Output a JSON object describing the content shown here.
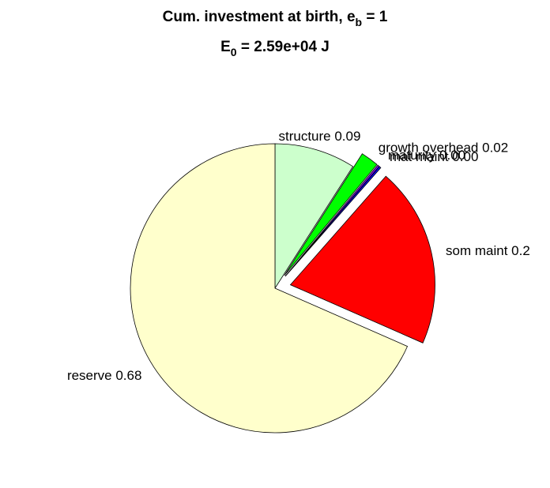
{
  "chart_data": {
    "type": "pie",
    "title": [
      "Cum. investment at birth, e",
      "b",
      " = 1"
    ],
    "subtitle": [
      "E",
      "0",
      " = 2.59e+04 J"
    ],
    "categories": [
      "structure 0.09",
      "growth overhead 0.02",
      "maturity 0.00",
      "mat maint 0.00",
      "som maint 0.2",
      "reserve 0.68"
    ],
    "values": [
      0.09,
      0.02,
      0.002,
      0.002,
      0.2,
      0.68
    ],
    "colors": [
      "#ccffcc",
      "#00ff00",
      "#8000ff",
      "#0000ff",
      "#ff0000",
      "#ffffcc"
    ],
    "explode": [
      false,
      true,
      true,
      true,
      true,
      false
    ]
  }
}
